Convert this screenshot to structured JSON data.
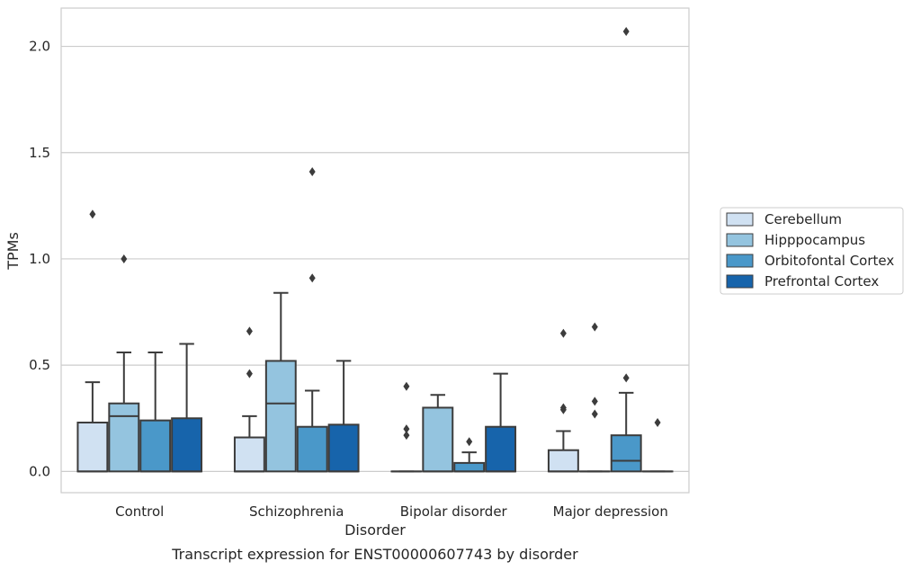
{
  "chart_data": {
    "type": "box",
    "caption": "Transcript expression for ENST00000607743 by disorder",
    "xlabel": "Disorder",
    "ylabel": "TPMs",
    "ylim": [
      -0.1,
      2.18
    ],
    "yticks": [
      "0.0",
      "0.5",
      "1.0",
      "1.5",
      "2.0"
    ],
    "grid": true,
    "legend_position": "right",
    "categories": [
      "Control",
      "Schizophrenia",
      "Bipolar disorder",
      "Major depression"
    ],
    "series": [
      {
        "name": "Cerebellum",
        "color": "#d0e1f2",
        "boxes": [
          {
            "q1": 0.0,
            "median": 0.0,
            "q3": 0.23,
            "whisker_low": 0.0,
            "whisker_high": 0.42,
            "outliers": [
              1.21
            ]
          },
          {
            "q1": 0.0,
            "median": 0.0,
            "q3": 0.16,
            "whisker_low": 0.0,
            "whisker_high": 0.26,
            "outliers": [
              0.46,
              0.66
            ]
          },
          {
            "q1": 0.0,
            "median": 0.0,
            "q3": 0.0,
            "whisker_low": 0.0,
            "whisker_high": 0.0,
            "outliers": [
              0.17,
              0.2,
              0.4
            ]
          },
          {
            "q1": 0.0,
            "median": 0.0,
            "q3": 0.1,
            "whisker_low": 0.0,
            "whisker_high": 0.19,
            "outliers": [
              0.29,
              0.3,
              0.65
            ]
          }
        ]
      },
      {
        "name": "Hipppocampus",
        "color": "#94c4df",
        "boxes": [
          {
            "q1": 0.0,
            "median": 0.26,
            "q3": 0.32,
            "whisker_low": 0.0,
            "whisker_high": 0.56,
            "outliers": [
              1.0
            ]
          },
          {
            "q1": 0.0,
            "median": 0.32,
            "q3": 0.52,
            "whisker_low": 0.0,
            "whisker_high": 0.84,
            "outliers": []
          },
          {
            "q1": 0.0,
            "median": 0.0,
            "q3": 0.3,
            "whisker_low": 0.0,
            "whisker_high": 0.36,
            "outliers": []
          },
          {
            "q1": 0.0,
            "median": 0.0,
            "q3": 0.0,
            "whisker_low": 0.0,
            "whisker_high": 0.0,
            "outliers": [
              0.27,
              0.33,
              0.68
            ]
          }
        ]
      },
      {
        "name": "Orbitofontal Cortex",
        "color": "#4a98c9",
        "boxes": [
          {
            "q1": 0.0,
            "median": 0.0,
            "q3": 0.24,
            "whisker_low": 0.0,
            "whisker_high": 0.56,
            "outliers": []
          },
          {
            "q1": 0.0,
            "median": 0.0,
            "q3": 0.21,
            "whisker_low": 0.0,
            "whisker_high": 0.38,
            "outliers": [
              0.91,
              1.41
            ]
          },
          {
            "q1": 0.0,
            "median": 0.0,
            "q3": 0.04,
            "whisker_low": 0.0,
            "whisker_high": 0.09,
            "outliers": [
              0.14
            ]
          },
          {
            "q1": 0.0,
            "median": 0.05,
            "q3": 0.17,
            "whisker_low": 0.0,
            "whisker_high": 0.37,
            "outliers": [
              0.44,
              2.07
            ]
          }
        ]
      },
      {
        "name": "Prefrontal Cortex",
        "color": "#1764ab",
        "boxes": [
          {
            "q1": 0.0,
            "median": 0.0,
            "q3": 0.25,
            "whisker_low": 0.0,
            "whisker_high": 0.6,
            "outliers": []
          },
          {
            "q1": 0.0,
            "median": 0.0,
            "q3": 0.22,
            "whisker_low": 0.0,
            "whisker_high": 0.52,
            "outliers": []
          },
          {
            "q1": 0.0,
            "median": 0.0,
            "q3": 0.21,
            "whisker_low": 0.0,
            "whisker_high": 0.46,
            "outliers": []
          },
          {
            "q1": 0.0,
            "median": 0.0,
            "q3": 0.0,
            "whisker_low": 0.0,
            "whisker_high": 0.0,
            "outliers": [
              0.23
            ]
          }
        ]
      }
    ]
  }
}
